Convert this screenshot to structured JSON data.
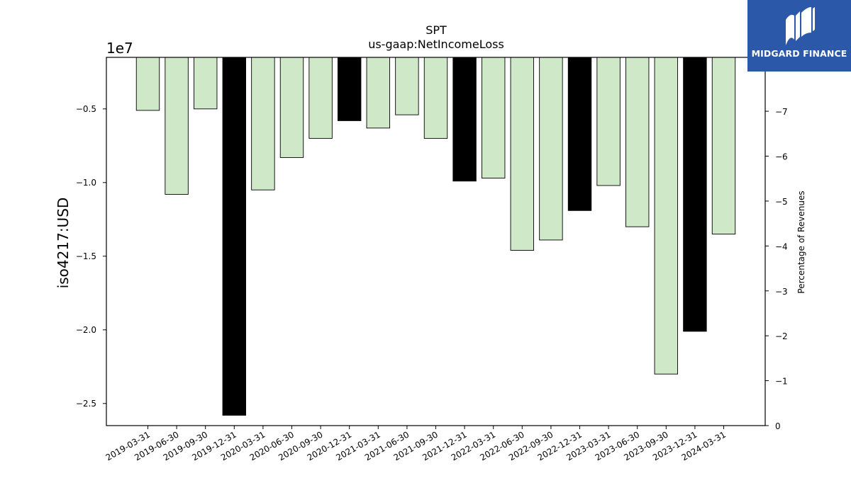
{
  "logo": {
    "text": "MIDGARD FINANCE",
    "icon": "midgard-logo-icon",
    "background": "#2b58a8"
  },
  "chart_data": {
    "type": "bar",
    "title": "SPT",
    "subtitle": "us-gaap:NetIncomeLoss",
    "ylabel": "iso4217:USD",
    "ylabel_offset": "1e7",
    "y2label": "Percentage of Revenues",
    "ylim": [
      -2.65,
      -0.15
    ],
    "yticks": [
      -0.5,
      -1.0,
      -1.5,
      -2.0,
      -2.5
    ],
    "ytick_labels": [
      "−0.5",
      "−1.0",
      "−1.5",
      "−2.0",
      "−2.5"
    ],
    "y2lim": [
      0,
      8.2
    ],
    "y2ticks": [
      0,
      1,
      2,
      3,
      4,
      5,
      6,
      7
    ],
    "y2tick_labels": [
      "0",
      "−1",
      "−2",
      "−3",
      "−4",
      "−5",
      "−6",
      "−7"
    ],
    "grid": false,
    "colors": {
      "quarterly": "#cfe9c8",
      "annual": "#000000",
      "edge": "#000000"
    },
    "categories": [
      "2019-03-31",
      "2019-06-30",
      "2019-09-30",
      "2019-12-31",
      "2020-03-31",
      "2020-06-30",
      "2020-09-30",
      "2020-12-31",
      "2021-03-31",
      "2021-06-30",
      "2021-09-30",
      "2021-12-31",
      "2022-03-31",
      "2022-06-30",
      "2022-09-30",
      "2022-12-31",
      "2023-03-31",
      "2023-06-30",
      "2023-09-30",
      "2023-12-31",
      "2024-03-31"
    ],
    "values": [
      -0.51,
      -1.08,
      -0.5,
      -2.58,
      -1.05,
      -0.83,
      -0.7,
      -0.58,
      -0.63,
      -0.54,
      -0.7,
      -0.99,
      -0.97,
      -1.46,
      -1.39,
      -1.19,
      -1.02,
      -1.3,
      -2.3,
      -2.01,
      -1.35
    ],
    "period": [
      "Q",
      "Q",
      "Q",
      "FY",
      "Q",
      "Q",
      "Q",
      "FY",
      "Q",
      "Q",
      "Q",
      "FY",
      "Q",
      "Q",
      "Q",
      "FY",
      "Q",
      "Q",
      "Q",
      "FY",
      "Q"
    ]
  }
}
